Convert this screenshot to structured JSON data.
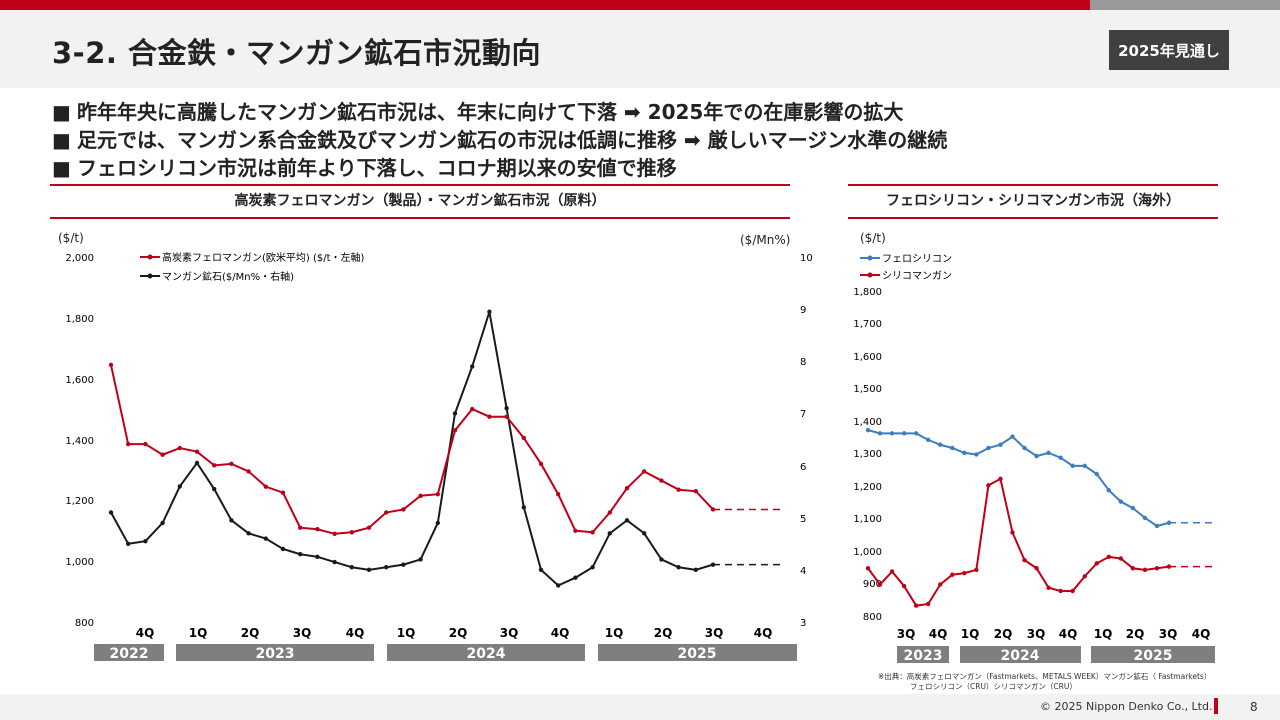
{
  "header": {
    "title": "3-2. 合金鉄・マンガン鉱石市況動向",
    "badge": "2025年見通し"
  },
  "bullets": [
    "■",
    "昨年年央に高騰したマンガン鉱石市況は、年末に向けて下落 ➡ 2025年での在庫影響の拡大",
    "足元では、マンガン系合金鉄及びマンガン鉱石の市況は低調に推移 ➡ 厳しいマージン水準の継続",
    "フェロシリコン市況は前年より下落し、コロナ期以来の安値で推移"
  ],
  "colors": {
    "accent_red": "#c00018",
    "series_red": "#c00018",
    "series_black": "#1a1a1a",
    "series_blue": "#3d7dbf",
    "year_bar": "#7f7f7f"
  },
  "chart_data": [
    {
      "type": "line",
      "title": "高炭素フェロマンガン（製品）・マンガン鉱石市況（原料）",
      "left_unit": "($/t)",
      "right_unit": "($/Mn%)",
      "left_ticks": [
        "2,000",
        "1,800",
        "1,600",
        "1,400",
        "1,200",
        "1,000",
        "800"
      ],
      "right_ticks": [
        "10",
        "9",
        "8",
        "7",
        "6",
        "5",
        "4",
        "3"
      ],
      "ylim_left": [
        800,
        2000
      ],
      "ylim_right": [
        3,
        10
      ],
      "quarter_labels": [
        "4Q",
        "1Q",
        "2Q",
        "3Q",
        "4Q",
        "1Q",
        "2Q",
        "3Q",
        "4Q",
        "1Q",
        "2Q",
        "3Q",
        "4Q"
      ],
      "years": [
        "2022",
        "2023",
        "2024",
        "2025"
      ],
      "series": [
        {
          "name": "高炭素フェロマンガン(欧米平均) ($/t・左軸)",
          "axis": "left",
          "values": [
            1645,
            1385,
            1385,
            1350,
            1372,
            1360,
            1315,
            1320,
            1295,
            1245,
            1225,
            1110,
            1105,
            1090,
            1095,
            1110,
            1160,
            1170,
            1215,
            1220,
            1430,
            1500,
            1475,
            1475,
            1405,
            1320,
            1220,
            1100,
            1095,
            1160,
            1240,
            1295,
            1265,
            1235,
            1230,
            1170
          ],
          "projection": 1170
        },
        {
          "name": "マンガン鉱石($/Mn%・右軸)",
          "axis": "right",
          "values": [
            5.1,
            4.5,
            4.55,
            4.9,
            5.6,
            6.05,
            5.55,
            4.95,
            4.7,
            4.6,
            4.4,
            4.3,
            4.25,
            4.15,
            4.05,
            4.0,
            4.05,
            4.1,
            4.2,
            4.9,
            7.0,
            7.9,
            8.95,
            7.1,
            5.2,
            4.0,
            3.7,
            3.85,
            4.05,
            4.7,
            4.95,
            4.7,
            4.2,
            4.05,
            4.0,
            4.1
          ],
          "projection": 4.1
        }
      ]
    },
    {
      "type": "line",
      "title": "フェロシリコン・シリコマンガン市況（海外）",
      "unit": "($/t)",
      "y_ticks": [
        "1,800",
        "1,700",
        "1,600",
        "1,500",
        "1,400",
        "1,300",
        "1,200",
        "1,100",
        "1,000",
        "900",
        "800"
      ],
      "ylim": [
        800,
        1800
      ],
      "quarter_labels": [
        "3Q",
        "4Q",
        "1Q",
        "2Q",
        "3Q",
        "4Q",
        "1Q",
        "2Q",
        "3Q",
        "4Q"
      ],
      "years": [
        "2023",
        "2024",
        "2025"
      ],
      "series": [
        {
          "name": "フェロシリコン",
          "values": [
            1375,
            1365,
            1365,
            1365,
            1365,
            1345,
            1330,
            1320,
            1305,
            1300,
            1320,
            1330,
            1355,
            1320,
            1295,
            1305,
            1290,
            1265,
            1265,
            1240,
            1190,
            1155,
            1135,
            1105,
            1080,
            1090
          ],
          "projection": 1090
        },
        {
          "name": "シリコマンガン",
          "values": [
            950,
            900,
            940,
            895,
            835,
            840,
            900,
            930,
            935,
            945,
            1205,
            1225,
            1060,
            975,
            950,
            890,
            880,
            880,
            925,
            965,
            985,
            980,
            950,
            945,
            950,
            955
          ],
          "projection": 955
        }
      ]
    }
  ],
  "source": {
    "line1": "※出典：高炭素フェロマンガン（Fastmarkets、METALS WEEK）マンガン鉱石（ Fastmarkets）",
    "line2": "フェロシリコン（CRU）シリコマンガン（CRU）"
  },
  "footer": {
    "copyright": "© 2025 Nippon Denko Co., Ltd.",
    "page": "8"
  }
}
